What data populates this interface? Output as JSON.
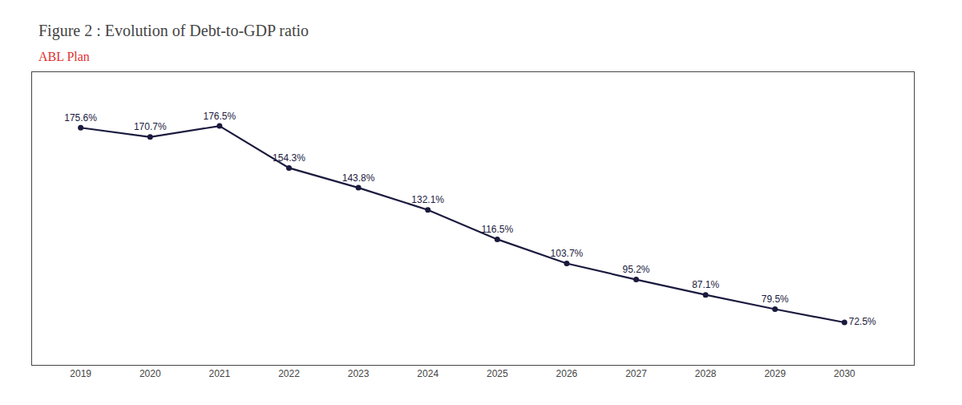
{
  "chart_data": {
    "type": "line",
    "title": "Figure 2 : Evolution of Debt-to-GDP ratio",
    "subtitle": "ABL Plan",
    "x": [
      2019,
      2020,
      2021,
      2022,
      2023,
      2024,
      2025,
      2026,
      2027,
      2028,
      2029,
      2030
    ],
    "values": [
      175.6,
      170.7,
      176.5,
      154.3,
      143.8,
      132.1,
      116.5,
      103.7,
      95.2,
      87.1,
      79.5,
      72.5
    ],
    "value_labels": [
      "175.6%",
      "170.7%",
      "176.5%",
      "154.3%",
      "143.8%",
      "132.1%",
      "116.5%",
      "103.7%",
      "95.2%",
      "87.1%",
      "79.5%",
      "72.5%"
    ],
    "data_labels": true,
    "color": "#1a1a3e",
    "marker": "circle",
    "xlim": [
      2018.3,
      2031.0
    ],
    "xticks": [
      2019,
      2020,
      2021,
      2022,
      2023,
      2024,
      2025,
      2026,
      2027,
      2028,
      2029,
      2030
    ],
    "ylim": [
      50,
      205
    ],
    "tick_labels": "x",
    "grid": false
  }
}
